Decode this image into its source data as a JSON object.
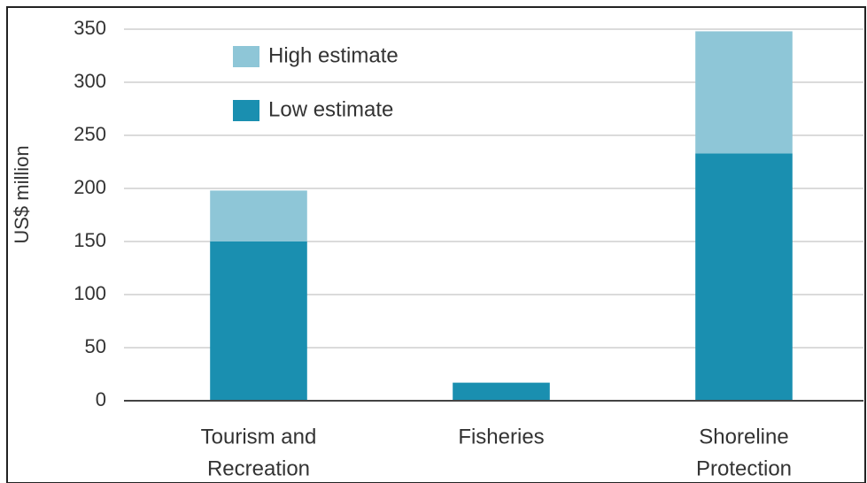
{
  "chart_data": {
    "type": "stacked_bar",
    "y_label": "US$ million",
    "categories": [
      [
        "Tourism and",
        "Recreation"
      ],
      [
        "Fisheries"
      ],
      [
        "Shoreline",
        "Protection"
      ]
    ],
    "series": [
      {
        "name": "Low estimate",
        "color": "#1a8fb0",
        "values": [
          150,
          17,
          233
        ]
      },
      {
        "name": "High estimate",
        "color": "#8ec6d7",
        "values": [
          48,
          0,
          115
        ]
      }
    ],
    "ylim": [
      0,
      350
    ],
    "yticks": [
      0,
      50,
      100,
      150,
      200,
      250,
      300,
      350
    ],
    "grid": true,
    "legend": "top-left"
  }
}
